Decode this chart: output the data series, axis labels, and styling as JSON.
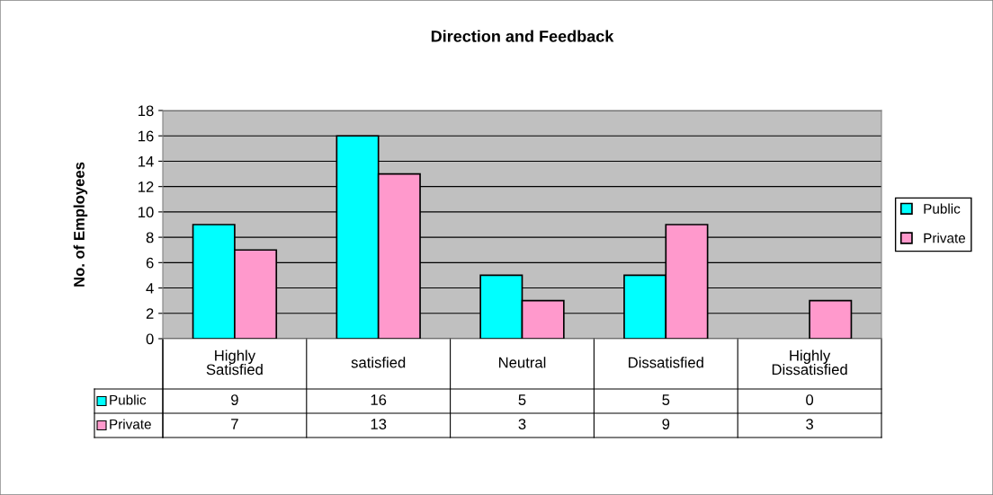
{
  "chart_data": {
    "type": "bar",
    "title": "Direction and Feedback",
    "ylabel": "No. of Employees",
    "categories": [
      "Highly Satisfied",
      "satisfied",
      "Neutral",
      "Dissatisfied",
      "Highly Dissatisfied"
    ],
    "series": [
      {
        "name": "Public",
        "color": "#00ffff",
        "values": [
          9,
          16,
          5,
          5,
          0
        ]
      },
      {
        "name": "Private",
        "color": "#ff99cc",
        "values": [
          7,
          13,
          3,
          9,
          3
        ]
      }
    ],
    "ylim": [
      0,
      18
    ],
    "yticks": [
      0,
      2,
      4,
      6,
      8,
      10,
      12,
      14,
      16,
      18
    ],
    "grid": "y",
    "legend": "right",
    "data_labels": true
  }
}
